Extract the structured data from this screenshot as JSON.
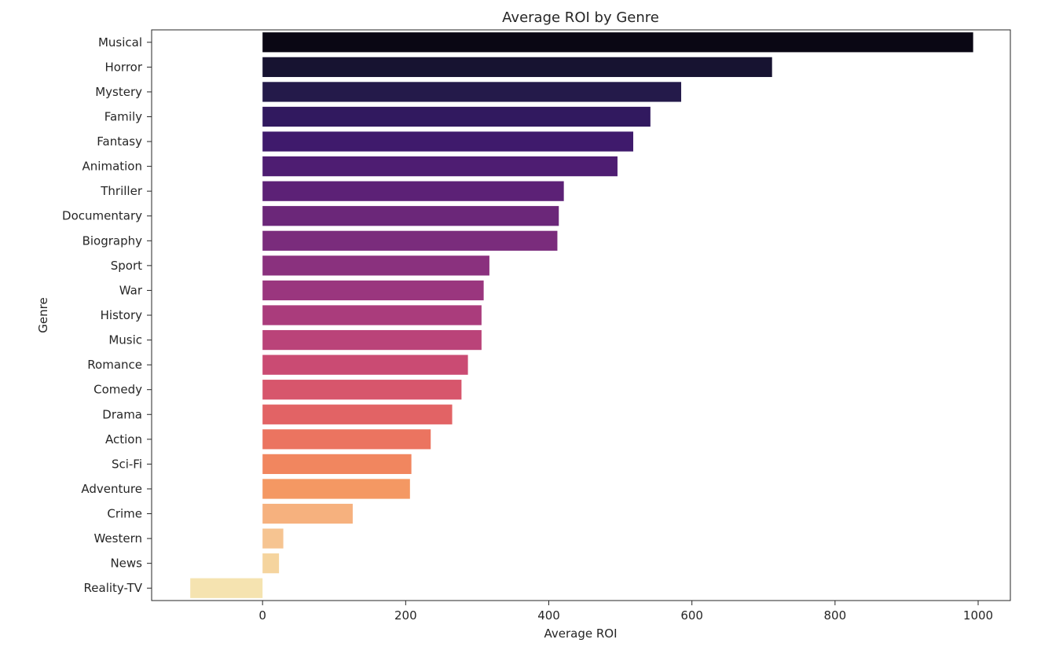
{
  "chart_data": {
    "type": "bar",
    "orientation": "horizontal",
    "title": "Average ROI by Genre",
    "xlabel": "Average ROI",
    "ylabel": "Genre",
    "xlim": [
      -155,
      1045
    ],
    "xticks": [
      0,
      200,
      400,
      600,
      800,
      1000
    ],
    "grid": false,
    "categories": [
      "Musical",
      "Horror",
      "Mystery",
      "Family",
      "Fantasy",
      "Animation",
      "Thriller",
      "Documentary",
      "Biography",
      "Sport",
      "War",
      "History",
      "Music",
      "Romance",
      "Comedy",
      "Drama",
      "Action",
      "Sci-Fi",
      "Adventure",
      "Crime",
      "Western",
      "News",
      "Reality-TV"
    ],
    "values": [
      993,
      712,
      585,
      542,
      518,
      496,
      421,
      414,
      412,
      317,
      309,
      306,
      306,
      287,
      278,
      265,
      235,
      208,
      206,
      126,
      29,
      23,
      -101
    ],
    "colors": [
      "#0a0714",
      "#171331",
      "#241a4a",
      "#31195f",
      "#3f1a6c",
      "#4e1d72",
      "#5c2176",
      "#6b2779",
      "#7a2c7c",
      "#8a317e",
      "#9a367e",
      "#aa3c7c",
      "#ba4379",
      "#ca4b73",
      "#d7566c",
      "#e26365",
      "#eb7460",
      "#f1865f",
      "#f49863",
      "#f6b17e",
      "#f6c491",
      "#f5d49e",
      "#f5e3b0"
    ]
  }
}
